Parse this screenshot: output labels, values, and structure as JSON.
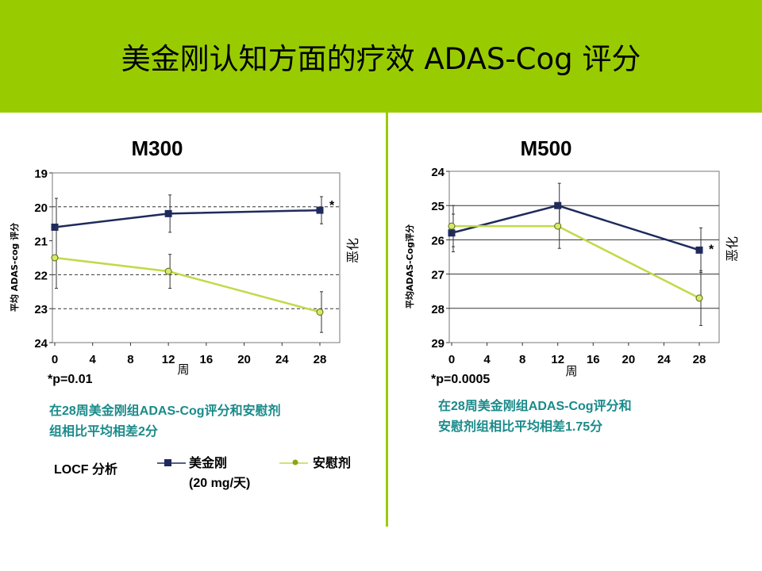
{
  "slide": {
    "title": "美金刚认知方面的疗效  ADAS-Cog 评分",
    "colors": {
      "band": "#99cc00",
      "memantine": "#1f2a5c",
      "placebo": "#c2d94a",
      "summary_text": "#1a8a8a"
    }
  },
  "legend": {
    "analysis_label": "LOCF 分析",
    "memantine_label": "美金刚",
    "memantine_dose": "(20 mg/天)",
    "placebo_label": "安慰剂"
  },
  "chart_data": [
    {
      "type": "line",
      "title": "M300",
      "ylabel": "平均 ADAS-cog 评分",
      "xlabel": "周",
      "side_label": "恶化",
      "ylim": [
        19,
        24
      ],
      "y_inverted": true,
      "yticks": [
        19,
        20,
        21,
        22,
        23,
        24
      ],
      "xlim": [
        0,
        28
      ],
      "xticks": [
        0,
        4,
        8,
        12,
        16,
        20,
        24,
        28
      ],
      "gridlines": [
        20,
        22,
        23
      ],
      "series": [
        {
          "name": "美金刚",
          "x": [
            0,
            12,
            28
          ],
          "y": [
            20.6,
            20.2,
            20.1
          ],
          "err": [
            0.85,
            0.55,
            0.4
          ],
          "marker": "square"
        },
        {
          "name": "安慰剂",
          "x": [
            0,
            12,
            28
          ],
          "y": [
            21.5,
            21.9,
            23.1
          ],
          "err": [
            0.9,
            0.5,
            0.6
          ],
          "marker": "circle"
        }
      ],
      "significance": {
        "x": 28,
        "label": "*"
      },
      "footnote": "*p=0.01",
      "summary": [
        "在28周美金刚组ADAS-Cog评分和安慰剂",
        "组相比平均相差2分"
      ]
    },
    {
      "type": "line",
      "title": "M500",
      "ylabel": "平均ADAS-Cog评分",
      "xlabel": "周",
      "side_label": "恶化",
      "ylim": [
        24,
        29
      ],
      "y_inverted": true,
      "yticks": [
        24,
        25,
        26,
        27,
        28,
        29
      ],
      "xlim": [
        0,
        28
      ],
      "xticks": [
        0,
        4,
        8,
        12,
        16,
        20,
        24,
        28
      ],
      "gridlines": [
        25,
        26,
        27,
        28
      ],
      "series": [
        {
          "name": "美金刚",
          "x": [
            0,
            12,
            28
          ],
          "y": [
            25.8,
            25.0,
            26.3
          ],
          "err": [
            0.55,
            0.65,
            0.65
          ],
          "marker": "square"
        },
        {
          "name": "安慰剂",
          "x": [
            0,
            12,
            28
          ],
          "y": [
            25.6,
            25.6,
            27.7
          ],
          "err": [
            0.6,
            0.65,
            0.8
          ],
          "marker": "circle"
        }
      ],
      "significance": {
        "x": 28,
        "label": "*"
      },
      "footnote": "*p=0.0005",
      "summary": [
        "在28周美金刚组ADAS-Cog评分和",
        "安慰剂组相比平均相差1.75分"
      ]
    }
  ]
}
